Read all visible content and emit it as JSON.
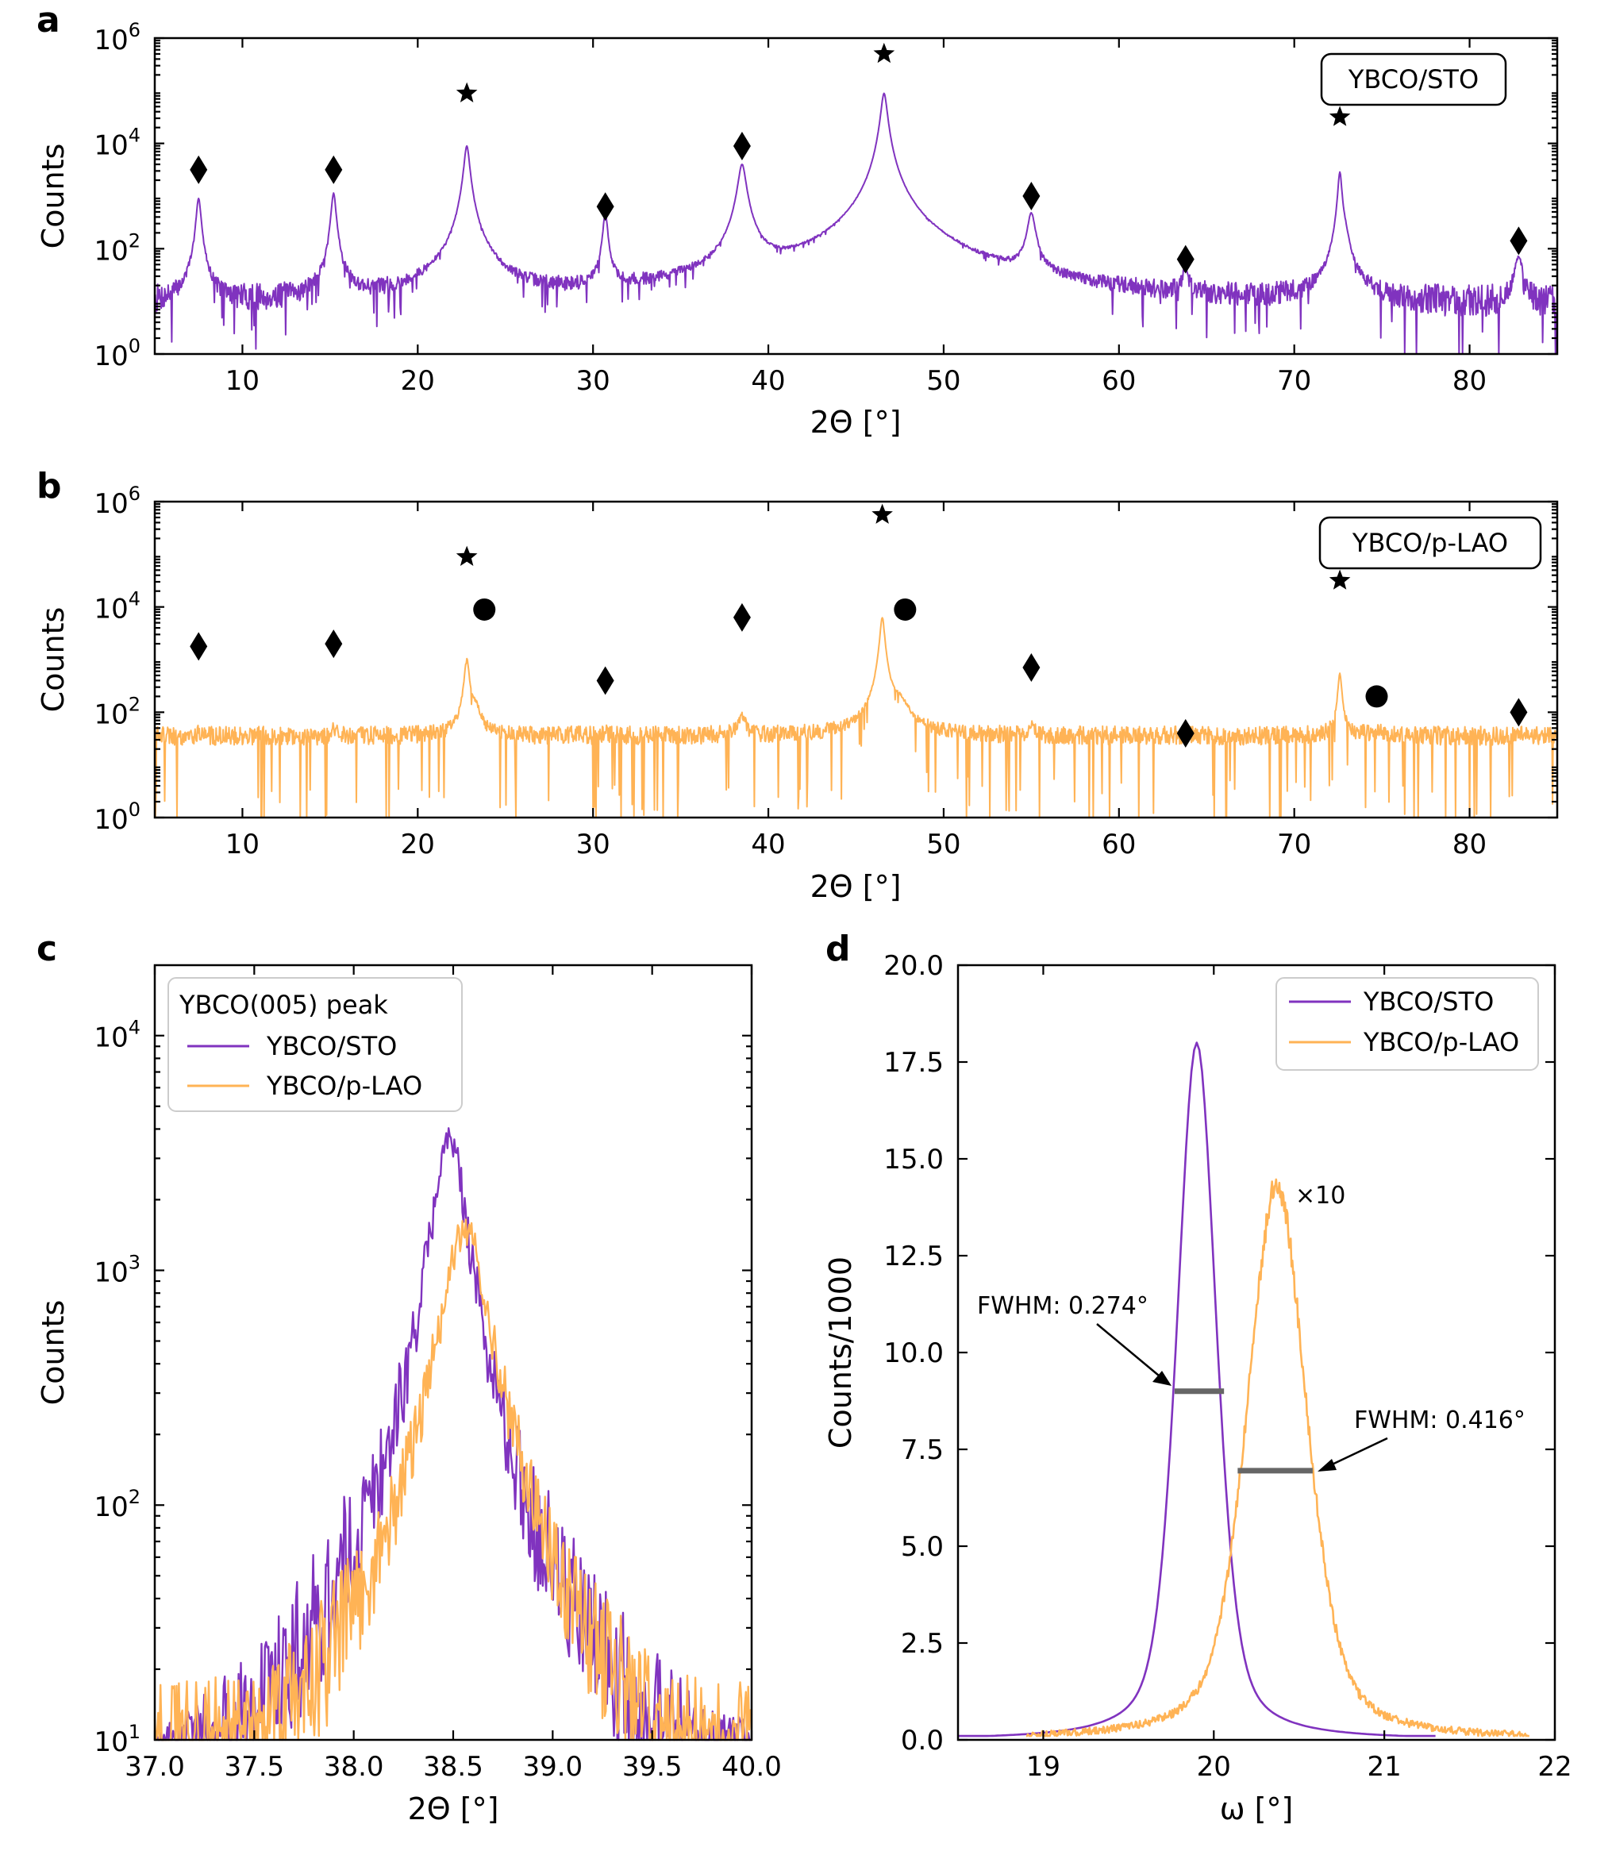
{
  "colors": {
    "sto": "#8033bf",
    "lao": "#ffb355",
    "fwhm_bar": "#666666",
    "text": "#000000"
  },
  "chart_data": [
    {
      "panel": "a",
      "type": "line",
      "scale_y": "log",
      "title": "",
      "xlabel": "2Θ [°]",
      "ylabel": "Counts",
      "xlim": [
        5,
        85
      ],
      "ylim_exp": [
        0,
        6
      ],
      "xticks": [
        10,
        20,
        30,
        40,
        50,
        60,
        70,
        80
      ],
      "yticks": [
        {
          "base": "10",
          "exp": "0",
          "value": 0
        },
        {
          "base": "10",
          "exp": "2",
          "value": 2
        },
        {
          "base": "10",
          "exp": "4",
          "value": 4
        },
        {
          "base": "10",
          "exp": "6",
          "value": 6
        }
      ],
      "box_label": "YBCO/STO",
      "color": "sto",
      "baseline_log": 0.85,
      "noise_log": 0.45,
      "peaks": [
        {
          "x": 7.5,
          "log_height": 2.95,
          "width": 0.12
        },
        {
          "x": 15.2,
          "log_height": 3.05,
          "width": 0.12
        },
        {
          "x": 22.8,
          "log_height": 3.95,
          "width": 0.14
        },
        {
          "x": 30.7,
          "log_height": 2.65,
          "width": 0.12
        },
        {
          "x": 38.5,
          "log_height": 3.6,
          "width": 0.2
        },
        {
          "x": 46.6,
          "log_height": 4.95,
          "width": 0.16
        },
        {
          "x": 55.0,
          "log_height": 2.65,
          "width": 0.2
        },
        {
          "x": 63.8,
          "log_height": 1.4,
          "width": 0.16
        },
        {
          "x": 72.6,
          "log_height": 3.45,
          "width": 0.1
        },
        {
          "x": 72.9,
          "log_height": 2.0,
          "width": 0.2
        },
        {
          "x": 82.8,
          "log_height": 1.8,
          "width": 0.2
        }
      ],
      "markers": [
        {
          "x": 7.5,
          "log_y": 3.5,
          "symbol": "diamond"
        },
        {
          "x": 15.2,
          "log_y": 3.5,
          "symbol": "diamond"
        },
        {
          "x": 22.8,
          "log_y": 4.95,
          "symbol": "star"
        },
        {
          "x": 30.7,
          "log_y": 2.8,
          "symbol": "diamond"
        },
        {
          "x": 38.5,
          "log_y": 3.95,
          "symbol": "diamond"
        },
        {
          "x": 46.6,
          "log_y": 5.7,
          "symbol": "star"
        },
        {
          "x": 55.0,
          "log_y": 3.0,
          "symbol": "diamond"
        },
        {
          "x": 63.8,
          "log_y": 1.8,
          "symbol": "diamond"
        },
        {
          "x": 72.6,
          "log_y": 4.5,
          "symbol": "star"
        },
        {
          "x": 82.8,
          "log_y": 2.15,
          "symbol": "diamond"
        }
      ]
    },
    {
      "panel": "b",
      "type": "line",
      "scale_y": "log",
      "title": "",
      "xlabel": "2Θ [°]",
      "ylabel": "Counts",
      "xlim": [
        5,
        85
      ],
      "ylim_exp": [
        0,
        6
      ],
      "xticks": [
        10,
        20,
        30,
        40,
        50,
        60,
        70,
        80
      ],
      "yticks": [
        {
          "base": "10",
          "exp": "0",
          "value": 0
        },
        {
          "base": "10",
          "exp": "2",
          "value": 2
        },
        {
          "base": "10",
          "exp": "4",
          "value": 4
        },
        {
          "base": "10",
          "exp": "6",
          "value": 6
        }
      ],
      "box_label": "YBCO/p-LAO",
      "color": "lao",
      "baseline_log": 1.55,
      "noise_log": 0.18,
      "peaks": [
        {
          "x": 7.5,
          "log_height": 0.9,
          "width": 0.12
        },
        {
          "x": 15.2,
          "log_height": 1.1,
          "width": 0.12
        },
        {
          "x": 22.8,
          "log_height": 3.0,
          "width": 0.12
        },
        {
          "x": 23.3,
          "log_height": 1.9,
          "width": 0.25
        },
        {
          "x": 30.7,
          "log_height": 0.9,
          "width": 0.12
        },
        {
          "x": 38.5,
          "log_height": 1.7,
          "width": 0.2
        },
        {
          "x": 46.5,
          "log_height": 3.8,
          "width": 0.12
        },
        {
          "x": 47.5,
          "log_height": 2.0,
          "width": 0.5
        },
        {
          "x": 55.0,
          "log_height": 1.2,
          "width": 0.2
        },
        {
          "x": 63.8,
          "log_height": 0.35,
          "width": 0.15
        },
        {
          "x": 72.6,
          "log_height": 2.7,
          "width": 0.1
        },
        {
          "x": 73.0,
          "log_height": 0.7,
          "width": 0.25
        },
        {
          "x": 74.7,
          "log_height": 0.8,
          "width": 0.5
        },
        {
          "x": 82.8,
          "log_height": 0.9,
          "width": 0.2
        }
      ],
      "markers": [
        {
          "x": 7.5,
          "log_y": 3.25,
          "symbol": "diamond"
        },
        {
          "x": 15.2,
          "log_y": 3.3,
          "symbol": "diamond"
        },
        {
          "x": 22.8,
          "log_y": 4.95,
          "symbol": "star"
        },
        {
          "x": 23.8,
          "log_y": 3.95,
          "symbol": "circle"
        },
        {
          "x": 30.7,
          "log_y": 2.6,
          "symbol": "diamond"
        },
        {
          "x": 38.5,
          "log_y": 3.8,
          "symbol": "diamond"
        },
        {
          "x": 46.5,
          "log_y": 5.75,
          "symbol": "star"
        },
        {
          "x": 47.8,
          "log_y": 3.95,
          "symbol": "circle"
        },
        {
          "x": 55.0,
          "log_y": 2.85,
          "symbol": "diamond"
        },
        {
          "x": 63.8,
          "log_y": 1.6,
          "symbol": "diamond"
        },
        {
          "x": 72.6,
          "log_y": 4.5,
          "symbol": "star"
        },
        {
          "x": 74.7,
          "log_y": 2.3,
          "symbol": "circle"
        },
        {
          "x": 82.8,
          "log_y": 2.0,
          "symbol": "diamond"
        }
      ]
    },
    {
      "panel": "c",
      "type": "line",
      "scale_y": "log",
      "title": "",
      "xlabel": "2Θ [°]",
      "ylabel": "Counts",
      "xlim": [
        37.0,
        40.0
      ],
      "ylim_exp": [
        1,
        4.3
      ],
      "xticks": [
        37.0,
        37.5,
        38.0,
        38.5,
        39.0,
        39.5,
        40.0
      ],
      "xtick_labels": [
        "37.0",
        "37.5",
        "38.0",
        "38.5",
        "39.0",
        "39.5",
        "40.0"
      ],
      "yticks": [
        {
          "base": "10",
          "exp": "1",
          "value": 1
        },
        {
          "base": "10",
          "exp": "2",
          "value": 2
        },
        {
          "base": "10",
          "exp": "3",
          "value": 3
        },
        {
          "base": "10",
          "exp": "4",
          "value": 4
        }
      ],
      "legend_title": "YBCO(005) peak",
      "series": [
        {
          "name": "YBCO/STO",
          "color": "sto",
          "center": 38.48,
          "peak_log": 3.56,
          "hwhm": 0.09,
          "tail_log_floor": 0.3
        },
        {
          "name": "YBCO/p-LAO",
          "color": "lao",
          "center": 38.56,
          "peak_log": 3.17,
          "hwhm": 0.12,
          "tail_log_floor": 0.8
        }
      ]
    },
    {
      "panel": "d",
      "type": "line",
      "scale_y": "linear",
      "title": "",
      "xlabel": "ω [°]",
      "ylabel": "Counts/1000",
      "xlim": [
        18.5,
        22
      ],
      "ylim": [
        0,
        20
      ],
      "xticks": [
        19,
        20,
        21,
        22
      ],
      "xtick_labels": [
        "19",
        "20",
        "21",
        "22"
      ],
      "yticks": [
        0,
        2.5,
        5,
        7.5,
        10,
        12.5,
        15,
        17.5,
        20
      ],
      "ytick_labels": [
        "0.0",
        "2.5",
        "5.0",
        "7.5",
        "10.0",
        "12.5",
        "15.0",
        "17.5",
        "20.0"
      ],
      "series": [
        {
          "name": "YBCO/STO",
          "color": "sto",
          "center": 19.9,
          "peak": 18.0,
          "fwhm": 0.274,
          "x_range": [
            18.5,
            21.3
          ]
        },
        {
          "name": "YBCO/p-LAO",
          "color": "lao",
          "center": 20.37,
          "peak": 14.3,
          "fwhm": 0.416,
          "x_range": [
            18.9,
            21.85
          ]
        }
      ],
      "fwhm_annotations": [
        {
          "label": "FWHM: 0.274°",
          "bar_x": [
            19.77,
            20.06
          ],
          "bar_y": 9.0
        },
        {
          "label": "FWHM: 0.416°",
          "bar_x": [
            20.14,
            20.58
          ],
          "bar_y": 6.95
        }
      ],
      "scale_label": "×10"
    }
  ]
}
